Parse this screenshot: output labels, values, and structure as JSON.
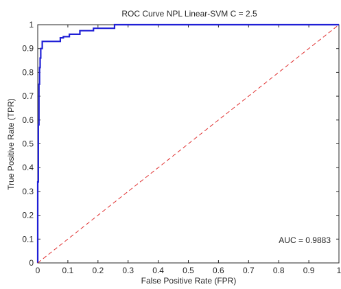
{
  "chart_data": {
    "type": "line",
    "title": "ROC Curve NPL Linear-SVM C = 2.5",
    "xlabel": "False Positive Rate (FPR)",
    "ylabel": "True Positive Rate (TPR)",
    "xlim": [
      0,
      1
    ],
    "ylim": [
      0,
      1
    ],
    "xticks": [
      "0",
      "0.1",
      "0.2",
      "0.3",
      "0.4",
      "0.5",
      "0.6",
      "0.7",
      "0.8",
      "0.9",
      "1"
    ],
    "yticks": [
      "0",
      "0.1",
      "0.2",
      "0.3",
      "0.4",
      "0.5",
      "0.6",
      "0.7",
      "0.8",
      "0.9",
      "1"
    ],
    "grid": false,
    "annotation": "AUC = 0.9883",
    "series": [
      {
        "color": "#1f1fd6",
        "style": "solid",
        "x": [
          0,
          0,
          0.002,
          0.002,
          0.004,
          0.004,
          0.006,
          0.006,
          0.008,
          0.008,
          0.01,
          0.01,
          0.015,
          0.015,
          0.075,
          0.075,
          0.085,
          0.085,
          0.105,
          0.105,
          0.14,
          0.14,
          0.185,
          0.185,
          0.255,
          0.255,
          1
        ],
        "y": [
          0,
          0.34,
          0.34,
          0.58,
          0.58,
          0.75,
          0.75,
          0.82,
          0.82,
          0.86,
          0.86,
          0.9,
          0.9,
          0.93,
          0.93,
          0.945,
          0.945,
          0.95,
          0.95,
          0.96,
          0.96,
          0.975,
          0.975,
          0.985,
          0.985,
          1,
          1
        ]
      },
      {
        "color": "#e03030",
        "style": "dashed",
        "x": [
          0,
          1
        ],
        "y": [
          0,
          1
        ]
      }
    ]
  }
}
